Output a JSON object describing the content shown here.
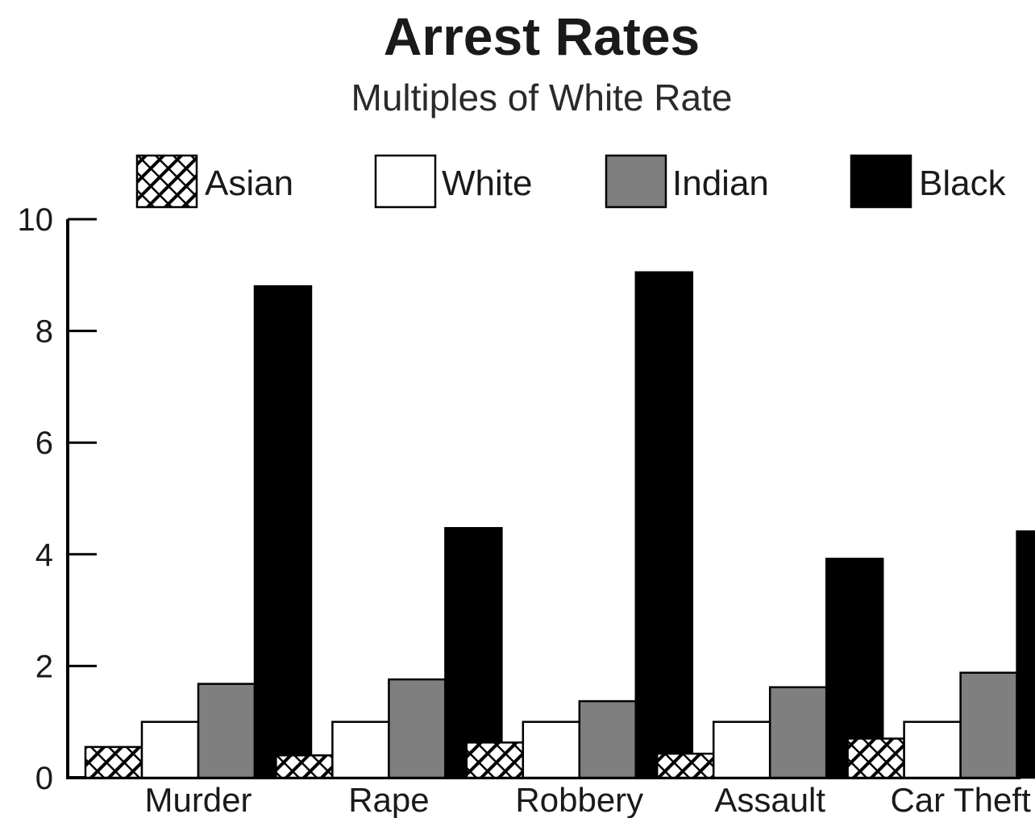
{
  "chart_data": {
    "type": "bar",
    "title": "Arrest Rates",
    "subtitle": "Multiples of White Rate",
    "categories": [
      "Murder",
      "Rape",
      "Robbery",
      "Assault",
      "Car Theft"
    ],
    "series": [
      {
        "name": "Asian",
        "values": [
          0.55,
          0.4,
          0.63,
          0.43,
          0.7
        ],
        "fill": "hatch"
      },
      {
        "name": "White",
        "values": [
          1.0,
          1.0,
          1.0,
          1.0,
          1.0
        ],
        "fill": "#ffffff"
      },
      {
        "name": "Indian",
        "values": [
          1.68,
          1.76,
          1.37,
          1.62,
          1.88
        ],
        "fill": "#7f7f7f"
      },
      {
        "name": "Black",
        "values": [
          8.8,
          4.47,
          9.05,
          3.92,
          4.41
        ],
        "fill": "#000000"
      }
    ],
    "ylim": [
      0,
      10
    ],
    "yticks": [
      0,
      2,
      4,
      6,
      8,
      10
    ],
    "ytick_labels": [
      "0",
      "2",
      "4",
      "6",
      "8",
      "10"
    ],
    "xlabel": "",
    "ylabel": "",
    "legend_position": "top",
    "grid": false
  }
}
